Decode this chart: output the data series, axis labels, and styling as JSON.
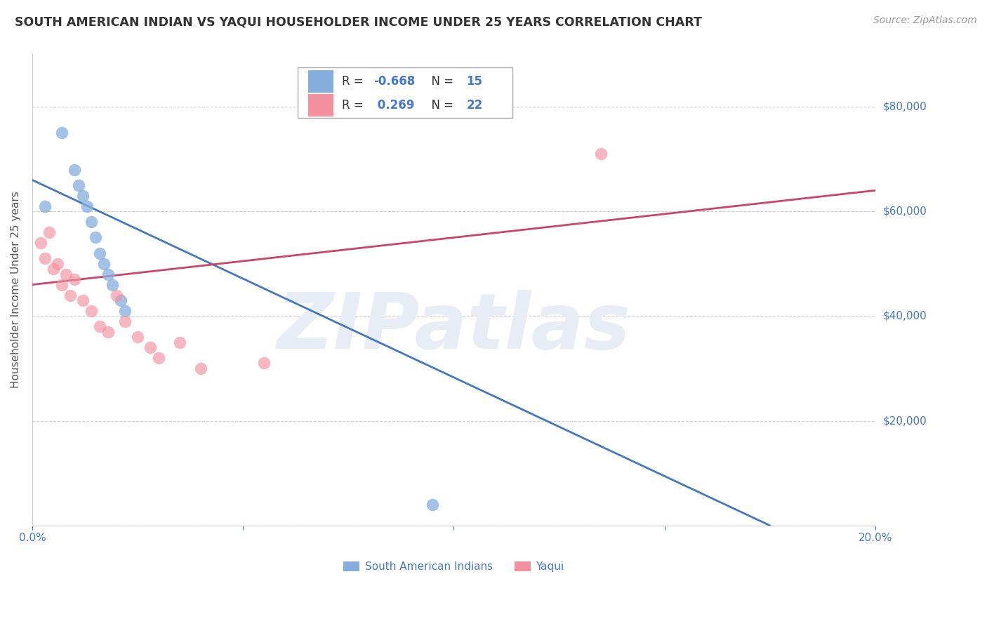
{
  "title": "SOUTH AMERICAN INDIAN VS YAQUI HOUSEHOLDER INCOME UNDER 25 YEARS CORRELATION CHART",
  "source": "Source: ZipAtlas.com",
  "ylabel": "Householder Income Under 25 years",
  "x_min": 0.0,
  "x_max": 0.2,
  "y_min": 0,
  "y_max": 90000,
  "x_ticks": [
    0.0,
    0.05,
    0.1,
    0.15,
    0.2
  ],
  "x_tick_labels": [
    "0.0%",
    "",
    "",
    "",
    "20.0%"
  ],
  "y_ticks": [
    0,
    20000,
    40000,
    60000,
    80000
  ],
  "y_tick_labels": [
    "",
    "$20,000",
    "$40,000",
    "$60,000",
    "$80,000"
  ],
  "blue_R": -0.668,
  "blue_N": 15,
  "pink_R": 0.269,
  "pink_N": 22,
  "blue_scatter_x": [
    0.003,
    0.007,
    0.01,
    0.011,
    0.012,
    0.013,
    0.014,
    0.015,
    0.016,
    0.017,
    0.018,
    0.019,
    0.021,
    0.022,
    0.095
  ],
  "blue_scatter_y": [
    61000,
    75000,
    68000,
    65000,
    63000,
    61000,
    58000,
    55000,
    52000,
    50000,
    48000,
    46000,
    43000,
    41000,
    4000
  ],
  "pink_scatter_x": [
    0.002,
    0.003,
    0.004,
    0.005,
    0.006,
    0.007,
    0.008,
    0.009,
    0.01,
    0.012,
    0.014,
    0.016,
    0.018,
    0.02,
    0.022,
    0.025,
    0.028,
    0.03,
    0.035,
    0.04,
    0.055,
    0.135
  ],
  "pink_scatter_y": [
    54000,
    51000,
    56000,
    49000,
    50000,
    46000,
    48000,
    44000,
    47000,
    43000,
    41000,
    38000,
    37000,
    44000,
    39000,
    36000,
    34000,
    32000,
    35000,
    30000,
    31000,
    71000
  ],
  "blue_line_x": [
    0.0,
    0.175
  ],
  "blue_line_y": [
    66000,
    0
  ],
  "pink_line_x": [
    0.0,
    0.2
  ],
  "pink_line_y": [
    46000,
    64000
  ],
  "blue_color": "#85AEDD",
  "pink_color": "#F4919F",
  "blue_line_color": "#4477BB",
  "pink_line_color": "#CC4466",
  "title_color": "#333333",
  "source_color": "#999999",
  "axis_color": "#4477CC",
  "grid_color": "#CCCCCC",
  "watermark_text": "ZIPatlas",
  "watermark_color": "#E8EDF5",
  "background_color": "#FFFFFF",
  "legend_border_color": "#AAAAAA"
}
